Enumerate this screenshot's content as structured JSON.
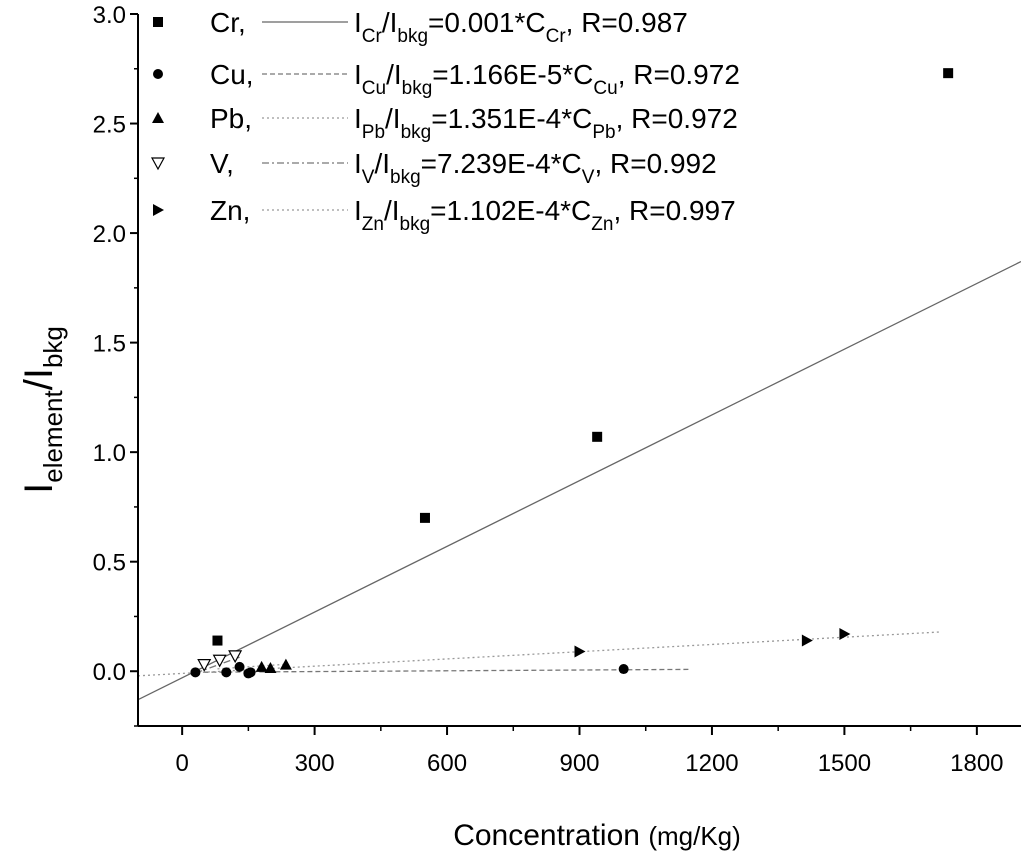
{
  "chart_data": {
    "type": "scatter",
    "title": "",
    "xlabel": "Concentration",
    "xlabel_unit": "(mg/Kg)",
    "ylabel_main": "I",
    "ylabel_sub1": "element",
    "ylabel_slash": "/I",
    "ylabel_sub2": "bkg",
    "xlim": [
      -100,
      1900
    ],
    "ylim": [
      -0.25,
      3.0
    ],
    "xticks": [
      0,
      300,
      600,
      900,
      1200,
      1500,
      1800
    ],
    "xtick_labels": [
      "0",
      "300",
      "600",
      "900",
      "1200",
      "1500",
      "1800"
    ],
    "yticks": [
      0.0,
      0.5,
      1.0,
      1.5,
      2.0,
      2.5,
      3.0
    ],
    "ytick_labels": [
      "0.0",
      "0.5",
      "1.0",
      "1.5",
      "2.0",
      "2.5",
      "3.0"
    ],
    "legend_position": "top-left",
    "series": [
      {
        "name": "Cr",
        "marker": "square",
        "line_style": "solid",
        "fit_slope": 0.001,
        "fit_intercept": -0.03,
        "fit_range": [
          -100,
          1900
        ],
        "eq_I": "I",
        "eq_sub": "Cr",
        "eq_bkg": "bkg",
        "eq_coef": "=0.001*C",
        "eq_R": ", R=0.987",
        "x": [
          80,
          550,
          940,
          1735
        ],
        "y": [
          0.14,
          0.7,
          1.07,
          2.73
        ]
      },
      {
        "name": "Cu",
        "marker": "circle",
        "line_style": "dashed",
        "fit_slope": 1.166e-05,
        "fit_intercept": -0.005,
        "fit_range": [
          30,
          1150
        ],
        "eq_I": "I",
        "eq_sub": "Cu",
        "eq_bkg": "bkg",
        "eq_coef": "=1.166E-5*C",
        "eq_R": ", R=0.972",
        "x": [
          30,
          100,
          130,
          150,
          155,
          1000
        ],
        "y": [
          -0.005,
          -0.005,
          0.02,
          -0.01,
          -0.005,
          0.01
        ]
      },
      {
        "name": "Pb",
        "marker": "triangle-up",
        "line_style": "dotted",
        "fit_slope": 0.0001351,
        "fit_intercept": 0.0,
        "fit_range": [
          80,
          240
        ],
        "eq_I": "I",
        "eq_sub": "Pb",
        "eq_bkg": "bkg",
        "eq_coef": "=1.351E-4*C",
        "eq_R": ", R=0.972",
        "x": [
          180,
          200,
          235
        ],
        "y": [
          0.02,
          0.015,
          0.03
        ]
      },
      {
        "name": "V",
        "marker": "triangle-down-open",
        "line_style": "dashdot",
        "fit_slope": 0.0007239,
        "fit_intercept": -0.03,
        "fit_range": [
          30,
          130
        ],
        "eq_I": "I",
        "eq_sub": "V",
        "eq_bkg": "bkg",
        "eq_coef": "=7.239E-4*C",
        "eq_R": ", R=0.992",
        "x": [
          50,
          85,
          120
        ],
        "y": [
          0.03,
          0.05,
          0.07
        ]
      },
      {
        "name": "Zn",
        "marker": "triangle-right",
        "line_style": "dotted",
        "fit_slope": 0.0001102,
        "fit_intercept": -0.01,
        "fit_range": [
          -100,
          1720
        ],
        "eq_I": "I",
        "eq_sub": "Zn",
        "eq_bkg": "bkg",
        "eq_coef": "=1.102E-4*C",
        "eq_R": ", R=0.997",
        "x": [
          900,
          1415,
          1500
        ],
        "y": [
          0.09,
          0.14,
          0.17
        ]
      }
    ]
  }
}
